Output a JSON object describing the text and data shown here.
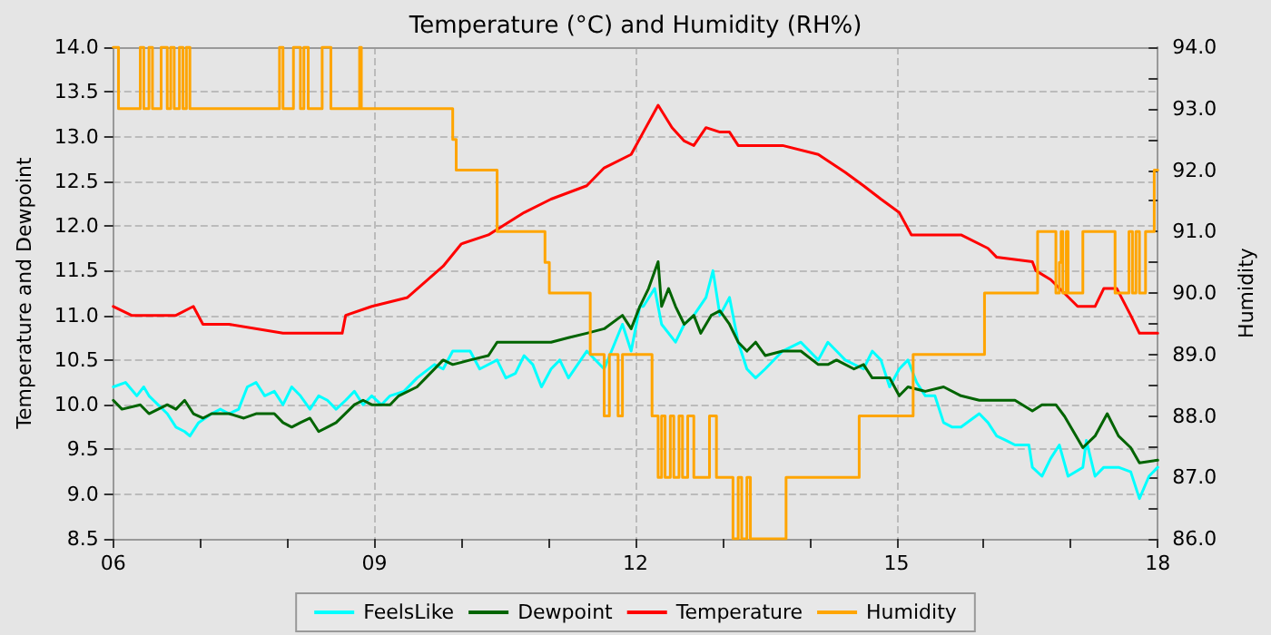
{
  "chart_data": {
    "type": "line",
    "title": "Temperature (°C) and Humidity (RH%)",
    "ylabel": "Temperature and Dewpoint",
    "y2label": "Humidity",
    "xlim": [
      6,
      18
    ],
    "xticks": [
      {
        "value": 6,
        "label": "06"
      },
      {
        "value": 7,
        "label": null
      },
      {
        "value": 8,
        "label": null
      },
      {
        "value": 9,
        "label": "09"
      },
      {
        "value": 10,
        "label": null
      },
      {
        "value": 11,
        "label": null
      },
      {
        "value": 12,
        "label": "12"
      },
      {
        "value": 13,
        "label": null
      },
      {
        "value": 14,
        "label": null
      },
      {
        "value": 15,
        "label": "15"
      },
      {
        "value": 16,
        "label": null
      },
      {
        "value": 17,
        "label": null
      },
      {
        "value": 18,
        "label": "18"
      }
    ],
    "ylim": [
      8.5,
      14
    ],
    "yticks": [
      8.5,
      {
        "value": 9,
        "label": "9.0"
      },
      9.5,
      {
        "value": 10,
        "label": "10.0"
      },
      10.5,
      {
        "value": 11,
        "label": "11.0"
      },
      11.5,
      {
        "value": 12,
        "label": "12.0"
      },
      12.5,
      {
        "value": 13,
        "label": "13.0"
      },
      13.5,
      {
        "value": 14,
        "label": "14.0"
      }
    ],
    "y2lim": [
      86,
      94
    ],
    "y2ticks": [
      {
        "value": 86,
        "label": "86.0"
      },
      {
        "value": 86.5,
        "label": null
      },
      {
        "value": 87,
        "label": "87.0"
      },
      {
        "value": 87.5,
        "label": null
      },
      {
        "value": 88,
        "label": "88.0"
      },
      {
        "value": 88.5,
        "label": null
      },
      {
        "value": 89,
        "label": "89.0"
      },
      {
        "value": 89.5,
        "label": null
      },
      {
        "value": 90,
        "label": "90.0"
      },
      {
        "value": 90.5,
        "label": null
      },
      {
        "value": 91,
        "label": "91.0"
      },
      {
        "value": 91.5,
        "label": null
      },
      {
        "value": 92,
        "label": "92.0"
      },
      {
        "value": 92.5,
        "label": null
      },
      {
        "value": 93,
        "label": "93.0"
      },
      {
        "value": 93.5,
        "label": null
      },
      {
        "value": 94,
        "label": "94.0"
      }
    ],
    "grid": true,
    "legend": "bottom",
    "line_style": "solid",
    "marker": "none",
    "series": [
      {
        "name": "FeelsLike",
        "color": "#00ffff",
        "x": [
          6.0,
          6.14,
          6.27,
          6.35,
          6.41,
          6.62,
          6.72,
          6.82,
          6.88,
          6.98,
          7.13,
          7.23,
          7.33,
          7.44,
          7.54,
          7.64,
          7.74,
          7.85,
          7.95,
          8.05,
          8.15,
          8.26,
          8.36,
          8.46,
          8.56,
          8.67,
          8.77,
          8.87,
          8.97,
          9.08,
          9.18,
          9.34,
          9.49,
          9.69,
          9.79,
          9.9,
          10.1,
          10.21,
          10.41,
          10.51,
          10.62,
          10.72,
          10.82,
          10.92,
          11.03,
          11.13,
          11.23,
          11.44,
          11.64,
          11.85,
          11.95,
          12.05,
          12.09,
          12.22,
          12.3,
          12.46,
          12.56,
          12.67,
          12.81,
          12.89,
          12.97,
          13.08,
          13.18,
          13.28,
          13.38,
          13.49,
          13.69,
          13.9,
          14.0,
          14.1,
          14.21,
          14.31,
          14.41,
          14.62,
          14.72,
          14.82,
          14.92,
          15.03,
          15.13,
          15.23,
          15.33,
          15.44,
          15.54,
          15.64,
          15.74,
          15.95,
          16.05,
          16.15,
          16.26,
          16.36,
          16.52,
          16.56,
          16.67,
          16.77,
          16.87,
          16.97,
          17.14,
          17.18,
          17.28,
          17.38,
          17.55,
          17.69,
          17.79,
          17.9,
          18.0
        ],
        "values": [
          10.2,
          10.25,
          10.1,
          10.2,
          10.1,
          9.9,
          9.75,
          9.7,
          9.65,
          9.8,
          9.9,
          9.95,
          9.9,
          9.95,
          10.2,
          10.25,
          10.1,
          10.15,
          10.0,
          10.2,
          10.1,
          9.95,
          10.1,
          10.05,
          9.95,
          10.05,
          10.15,
          10.0,
          10.1,
          10.0,
          10.1,
          10.15,
          10.3,
          10.45,
          10.4,
          10.6,
          10.6,
          10.4,
          10.5,
          10.3,
          10.35,
          10.55,
          10.45,
          10.2,
          10.4,
          10.5,
          10.3,
          10.6,
          10.4,
          10.9,
          10.6,
          11.1,
          11.1,
          11.3,
          10.9,
          10.7,
          10.9,
          11.0,
          11.2,
          11.5,
          11.0,
          11.2,
          10.7,
          10.4,
          10.3,
          10.4,
          10.6,
          10.7,
          10.6,
          10.5,
          10.7,
          10.6,
          10.5,
          10.4,
          10.6,
          10.5,
          10.2,
          10.4,
          10.5,
          10.25,
          10.1,
          10.1,
          9.8,
          9.75,
          9.75,
          9.9,
          9.8,
          9.65,
          9.6,
          9.55,
          9.55,
          9.3,
          9.2,
          9.4,
          9.55,
          9.2,
          9.3,
          9.6,
          9.2,
          9.3,
          9.3,
          9.25,
          8.95,
          9.2,
          9.3
        ]
      },
      {
        "name": "Dewpoint",
        "color": "#006400",
        "x": [
          6.0,
          6.1,
          6.31,
          6.41,
          6.62,
          6.72,
          6.82,
          6.92,
          7.03,
          7.13,
          7.33,
          7.5,
          7.64,
          7.85,
          7.95,
          8.05,
          8.15,
          8.26,
          8.36,
          8.46,
          8.56,
          8.77,
          8.87,
          8.97,
          9.18,
          9.28,
          9.49,
          9.59,
          9.79,
          9.9,
          10.1,
          10.31,
          10.41,
          11.03,
          11.23,
          11.44,
          11.64,
          11.85,
          11.95,
          12.05,
          12.15,
          12.26,
          12.3,
          12.38,
          12.46,
          12.56,
          12.67,
          12.75,
          12.87,
          12.97,
          13.08,
          13.18,
          13.28,
          13.38,
          13.49,
          13.69,
          13.9,
          14.1,
          14.21,
          14.31,
          14.51,
          14.62,
          14.72,
          14.92,
          15.03,
          15.13,
          15.33,
          15.54,
          15.74,
          15.95,
          16.15,
          16.36,
          16.56,
          16.67,
          16.83,
          16.93,
          17.14,
          17.28,
          17.42,
          17.55,
          17.69,
          17.79,
          18.0
        ],
        "values": [
          10.05,
          9.95,
          10.0,
          9.9,
          10.0,
          9.95,
          10.05,
          9.9,
          9.85,
          9.9,
          9.9,
          9.85,
          9.9,
          9.9,
          9.8,
          9.75,
          9.8,
          9.85,
          9.7,
          9.75,
          9.8,
          10.0,
          10.05,
          10.0,
          10.0,
          10.1,
          10.2,
          10.3,
          10.5,
          10.45,
          10.5,
          10.55,
          10.7,
          10.7,
          10.75,
          10.8,
          10.85,
          11.0,
          10.85,
          11.1,
          11.3,
          11.6,
          11.1,
          11.3,
          11.1,
          10.9,
          11.0,
          10.8,
          11.0,
          11.05,
          10.9,
          10.7,
          10.6,
          10.7,
          10.55,
          10.6,
          10.6,
          10.45,
          10.45,
          10.5,
          10.4,
          10.45,
          10.3,
          10.3,
          10.1,
          10.2,
          10.15,
          10.2,
          10.1,
          10.05,
          10.05,
          10.05,
          9.93,
          10.0,
          10.0,
          9.87,
          9.52,
          9.65,
          9.9,
          9.65,
          9.52,
          9.35,
          9.38
        ]
      },
      {
        "name": "Temperature",
        "color": "#ff0000",
        "x": [
          6.0,
          6.21,
          6.72,
          6.92,
          7.03,
          7.33,
          7.95,
          8.63,
          8.67,
          8.97,
          9.38,
          9.79,
          10.0,
          10.31,
          10.72,
          11.03,
          11.44,
          11.64,
          11.95,
          12.09,
          12.26,
          12.42,
          12.56,
          12.67,
          12.81,
          12.97,
          13.08,
          13.18,
          13.69,
          14.1,
          14.41,
          14.62,
          14.82,
          15.03,
          15.17,
          15.74,
          16.05,
          16.15,
          16.56,
          16.6,
          16.77,
          17.08,
          17.28,
          17.38,
          17.53,
          17.69,
          17.79,
          18.0
        ],
        "values": [
          11.1,
          11.0,
          11.0,
          11.1,
          10.9,
          10.9,
          10.8,
          10.8,
          11.0,
          11.1,
          11.2,
          11.55,
          11.8,
          11.9,
          12.15,
          12.3,
          12.45,
          12.65,
          12.8,
          13.05,
          13.35,
          13.1,
          12.95,
          12.9,
          13.1,
          13.05,
          13.05,
          12.9,
          12.9,
          12.8,
          12.6,
          12.45,
          12.3,
          12.15,
          11.9,
          11.9,
          11.75,
          11.65,
          11.6,
          11.5,
          11.4,
          11.1,
          11.1,
          11.3,
          11.3,
          11.0,
          10.8,
          10.8
        ]
      },
      {
        "name": "Humidity",
        "color": "#ffa500",
        "type": "step",
        "axis": "y2",
        "x": [
          6.0,
          6.06,
          6.31,
          6.35,
          6.41,
          6.45,
          6.55,
          6.62,
          6.66,
          6.7,
          6.76,
          6.8,
          6.84,
          6.88,
          7.91,
          7.95,
          8.07,
          8.15,
          8.19,
          8.24,
          8.4,
          8.5,
          8.83,
          8.85,
          9.9,
          9.94,
          10.41,
          10.96,
          11.01,
          11.48,
          11.64,
          11.7,
          11.8,
          11.85,
          12.19,
          12.26,
          12.3,
          12.34,
          12.4,
          12.44,
          12.5,
          12.54,
          12.6,
          12.67,
          12.85,
          12.93,
          13.12,
          13.18,
          13.22,
          13.28,
          13.32,
          13.73,
          14.57,
          15.19,
          16.01,
          16.62,
          16.83,
          16.87,
          16.89,
          16.91,
          16.95,
          16.97,
          17.14,
          17.51,
          17.67,
          17.71,
          17.75,
          17.79,
          17.86,
          17.96,
          18.0
        ],
        "values": [
          94,
          93,
          94,
          93,
          94,
          93,
          94,
          93,
          94,
          93,
          94,
          93,
          94,
          93,
          94,
          93,
          94,
          93,
          94,
          93,
          94,
          93,
          94,
          93,
          92.5,
          92,
          91,
          90.5,
          90,
          89,
          88,
          89,
          88,
          89,
          88,
          87,
          88,
          87,
          88,
          87,
          88,
          87,
          88,
          87,
          88,
          87,
          86,
          87,
          86,
          87,
          86,
          87,
          88,
          89,
          90,
          91,
          90,
          90.5,
          91,
          90,
          91,
          90,
          91,
          90,
          91,
          90,
          91,
          90,
          91,
          92,
          92
        ]
      }
    ]
  }
}
